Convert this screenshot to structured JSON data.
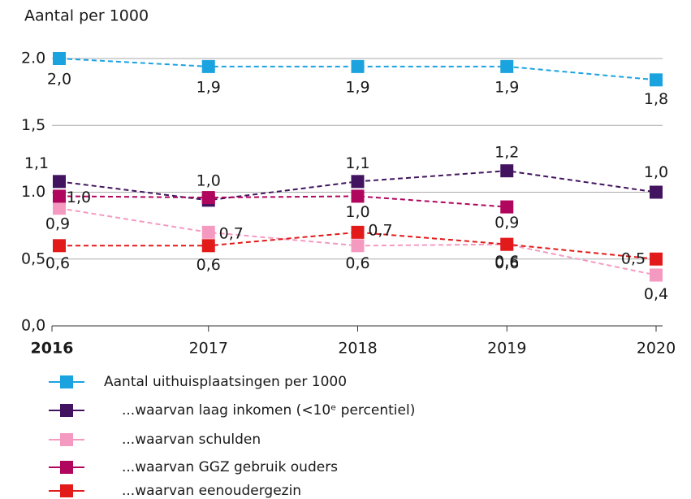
{
  "chart_data": {
    "type": "line",
    "y_label": "Aantal per 1000",
    "categories": [
      "2016",
      "2017",
      "2018",
      "2019",
      "2020"
    ],
    "ylim": [
      0,
      2
    ],
    "yticks": [
      {
        "value": 0,
        "label": "0,0"
      },
      {
        "value": 0.5,
        "label": "0,5"
      },
      {
        "value": 1,
        "label": "1.0"
      },
      {
        "value": 1.5,
        "label": "1,5"
      },
      {
        "value": 2,
        "label": "2.0"
      }
    ],
    "grid": true,
    "legend": "bottom",
    "series": [
      {
        "name": "Aantal uithuisplaatsingen per 1000",
        "color": "#1ba3e0",
        "values": [
          2.0,
          1.94,
          1.94,
          1.94,
          1.84
        ],
        "value_labels": [
          "2,0",
          "1,9",
          "1,9",
          "1,9",
          "1,8"
        ]
      },
      {
        "name": "...waarvan laag inkomen (<10ᵉ percentiel)",
        "color": "#42145f",
        "values": [
          1.08,
          0.94,
          1.08,
          1.16,
          1.0
        ],
        "value_labels": [
          "1,1",
          null,
          "1,1",
          "1,2",
          "1,0"
        ]
      },
      {
        "name": "...waarvan schulden",
        "color": "#f49ac1",
        "values": [
          0.88,
          0.7,
          0.6,
          0.61,
          0.38
        ],
        "value_labels": [
          "0,9",
          "0,7",
          "0,6",
          "0,6",
          "0,4"
        ]
      },
      {
        "name": "...waarvan GGZ gebruik ouders",
        "color": "#b0065e",
        "values": [
          0.97,
          0.96,
          0.97,
          0.89,
          null
        ],
        "value_labels": [
          "1,0",
          "1,0",
          "1,0",
          "0,9",
          null
        ]
      },
      {
        "name": "...waarvan eenoudergezin",
        "color": "#e21a1a",
        "values": [
          0.6,
          0.6,
          0.7,
          0.61,
          0.5
        ],
        "value_labels": [
          "0,6",
          "0,6",
          "0,7",
          "0,6",
          "0,5"
        ]
      }
    ]
  }
}
